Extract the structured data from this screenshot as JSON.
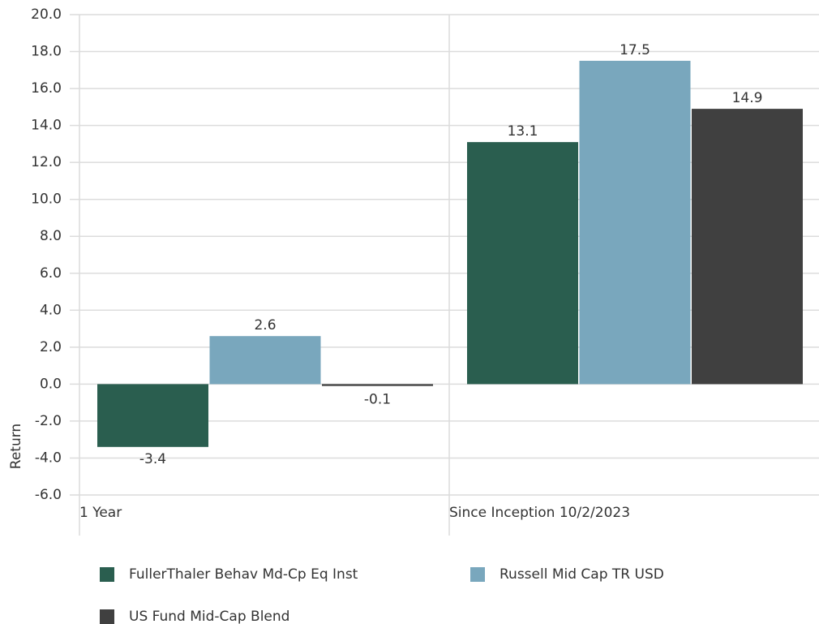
{
  "chart_data": {
    "type": "bar",
    "y_label": "Return",
    "categories": [
      "1 Year",
      "Since Inception 10/2/2023"
    ],
    "series": [
      {
        "name": "FullerThaler Behav Md-Cp Eq Inst",
        "color": "#2a5e4f",
        "values": [
          -3.4,
          13.1
        ]
      },
      {
        "name": "Russell Mid Cap TR USD",
        "color": "#79a7bd",
        "values": [
          2.6,
          17.5
        ]
      },
      {
        "name": "US Fund Mid-Cap Blend",
        "color": "#404040",
        "values": [
          -0.1,
          14.9
        ]
      }
    ],
    "ylim": [
      -6,
      20
    ],
    "yticks": [
      {
        "value": -6,
        "label": "-6.0"
      },
      {
        "value": -4,
        "label": "-4.0"
      },
      {
        "value": -2,
        "label": "-2.0"
      },
      {
        "value": 0,
        "label": "0.0"
      },
      {
        "value": 2,
        "label": "2.0"
      },
      {
        "value": 4,
        "label": "4.0"
      },
      {
        "value": 6,
        "label": "6.0"
      },
      {
        "value": 8,
        "label": "8.0"
      },
      {
        "value": 10,
        "label": "10.0"
      },
      {
        "value": 12,
        "label": "12.0"
      },
      {
        "value": 14,
        "label": "14.0"
      },
      {
        "value": 16,
        "label": "16.0"
      },
      {
        "value": 18,
        "label": "18.0"
      },
      {
        "value": 20,
        "label": "20.0"
      }
    ],
    "grid": true,
    "legend": "bottom"
  }
}
